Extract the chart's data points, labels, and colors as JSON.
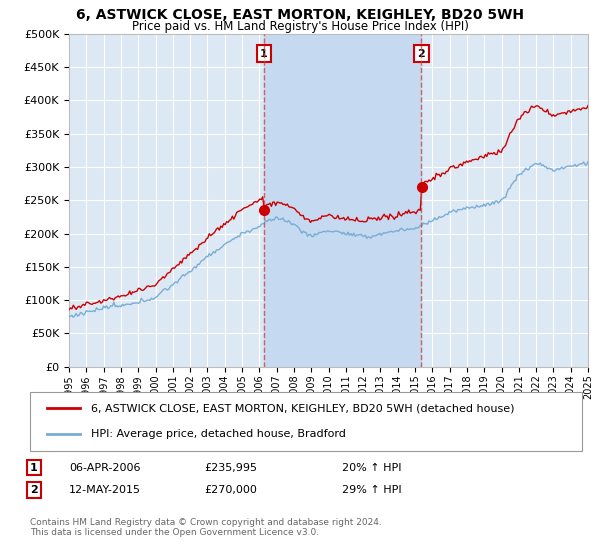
{
  "title": "6, ASTWICK CLOSE, EAST MORTON, KEIGHLEY, BD20 5WH",
  "subtitle": "Price paid vs. HM Land Registry's House Price Index (HPI)",
  "title_fontsize": 10,
  "subtitle_fontsize": 8.5,
  "background_color": "#ffffff",
  "plot_bg_color": "#dce9f5",
  "shade_color": "#c5d9f0",
  "grid_color": "#ffffff",
  "red_color": "#cc0000",
  "blue_color": "#7aadd4",
  "sale1_x": 2006.27,
  "sale2_x": 2015.37,
  "annotation1": {
    "label": "1",
    "date": "06-APR-2006",
    "price": "£235,995",
    "pct": "20% ↑ HPI"
  },
  "annotation2": {
    "label": "2",
    "date": "12-MAY-2015",
    "price": "£270,000",
    "pct": "29% ↑ HPI"
  },
  "legend1": "6, ASTWICK CLOSE, EAST MORTON, KEIGHLEY, BD20 5WH (detached house)",
  "legend2": "HPI: Average price, detached house, Bradford",
  "footer": "Contains HM Land Registry data © Crown copyright and database right 2024.\nThis data is licensed under the Open Government Licence v3.0.",
  "ylim": [
    0,
    500000
  ],
  "yticks": [
    0,
    50000,
    100000,
    150000,
    200000,
    250000,
    300000,
    350000,
    400000,
    450000,
    500000
  ],
  "xmin": 1995,
  "xmax": 2025
}
